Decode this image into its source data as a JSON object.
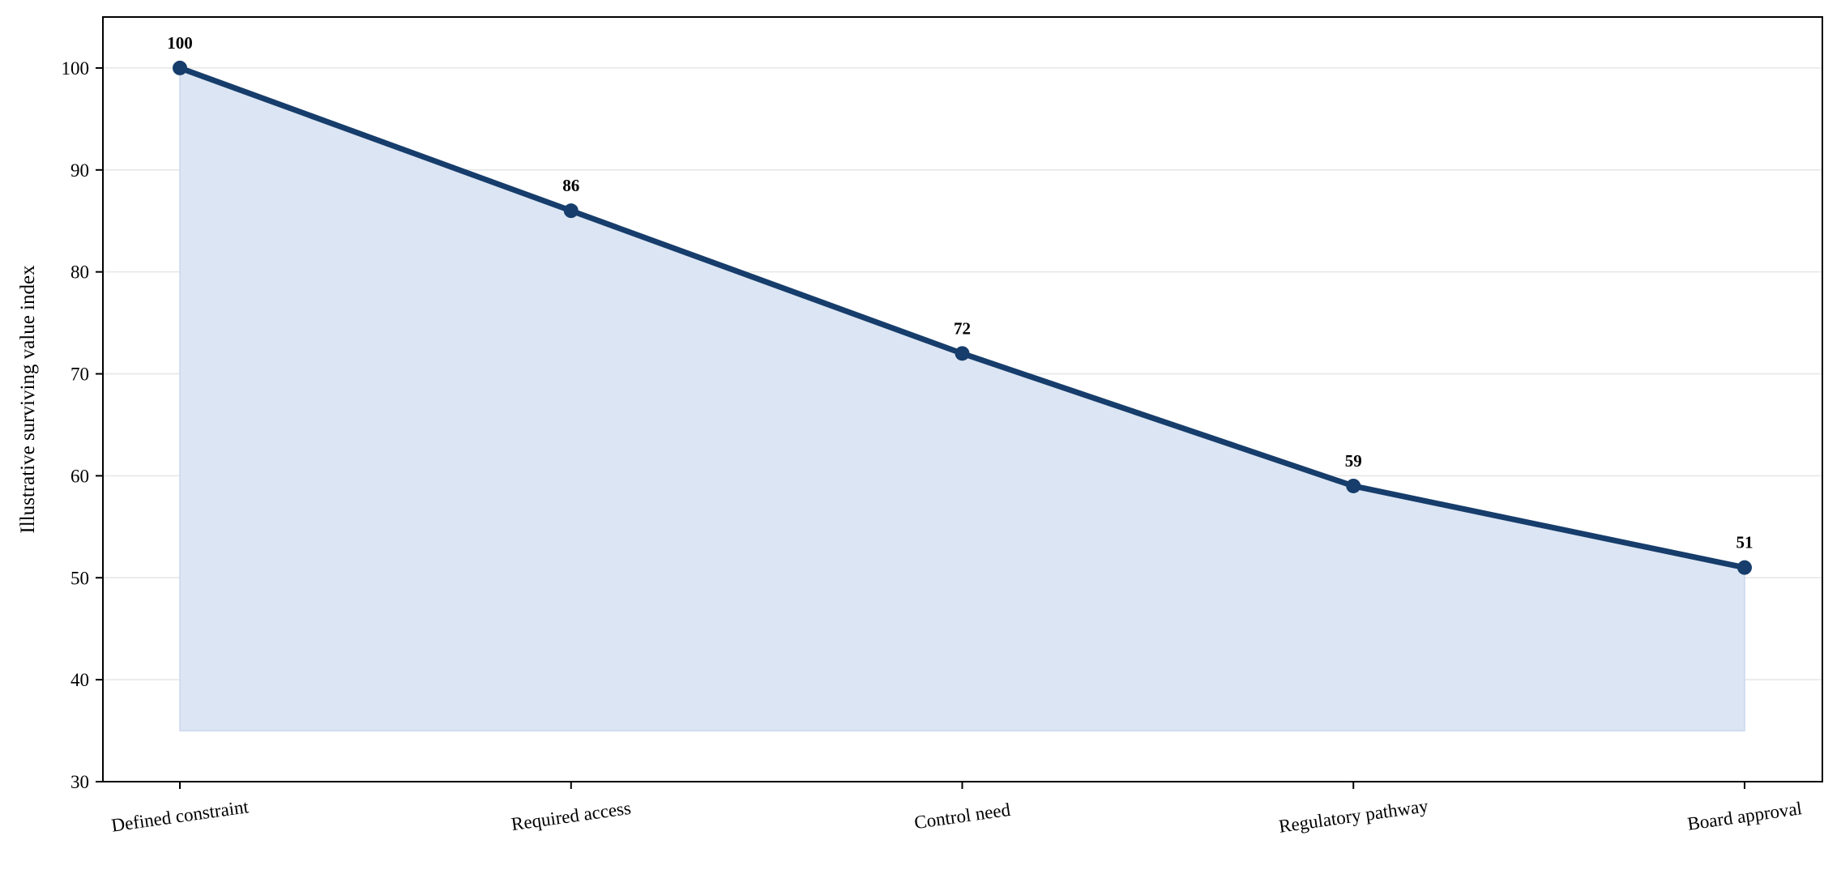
{
  "chart_data": {
    "type": "line",
    "title": "",
    "xlabel": "",
    "ylabel": "Illustrative surviving value index",
    "categories": [
      "Defined constraint",
      "Required access",
      "Control need",
      "Regulatory pathway",
      "Board approval"
    ],
    "series": [
      {
        "values": [
          100,
          86,
          72,
          59,
          51
        ]
      }
    ],
    "data_labels": [
      "100",
      "86",
      "72",
      "59",
      "51"
    ],
    "area_fill_baseline": 35,
    "ylim": [
      30,
      105
    ],
    "yticks": [
      30,
      40,
      50,
      60,
      70,
      80,
      90,
      100
    ],
    "ytick_labels": [
      "30",
      "40",
      "50",
      "60",
      "70",
      "80",
      "90",
      "100"
    ],
    "grid": "horizontal",
    "legend": "none",
    "colors": {
      "line": "#163d6b",
      "marker": "#163d6b",
      "fill": "#dce5f3",
      "fill_edge": "#c9d7ec",
      "grid": "#e6e6e6",
      "axes": "#000000"
    }
  }
}
